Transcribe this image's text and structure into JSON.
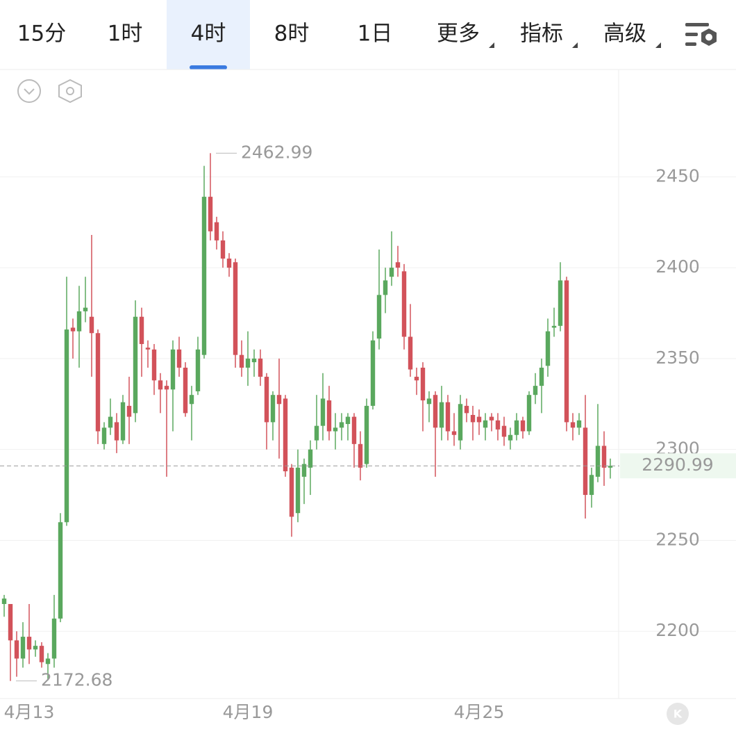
{
  "tabs": [
    "15分",
    "1时",
    "4时",
    "8时",
    "1日",
    "更多",
    "指标",
    "高级"
  ],
  "active_tab": 2,
  "chart_data": {
    "type": "candlestick",
    "open": [
      2215,
      2215,
      2195,
      2185,
      2197,
      2190,
      2192,
      2182,
      2185,
      2207,
      2260,
      2367,
      2365,
      2376,
      2373,
      2364,
      2303,
      2312,
      2315,
      2305,
      2324,
      2320,
      2373,
      2356,
      2355,
      2338,
      2335,
      2333,
      2355,
      2345,
      2325,
      2332,
      2352,
      2439,
      2425,
      2415,
      2405,
      2403,
      2352,
      2345,
      2348,
      2350,
      2340,
      2315,
      2330,
      2328,
      2290,
      2265,
      2285,
      2290,
      2305,
      2313,
      2327,
      2310,
      2312,
      2314,
      2318,
      2303,
      2292,
      2324,
      2361,
      2385,
      2395,
      2403,
      2398,
      2362,
      2340,
      2345,
      2325,
      2330,
      2312,
      2326,
      2310,
      2305,
      2324,
      2319,
      2318,
      2312,
      2318,
      2316,
      2313,
      2305,
      2308,
      2316,
      2310,
      2330,
      2335,
      2346,
      2367,
      2368,
      2393,
      2315,
      2312,
      2312,
      2275,
      2285,
      2302,
      2290
    ],
    "high": [
      2220,
      2215,
      2200,
      2205,
      2215,
      2195,
      2194,
      2188,
      2220,
      2265,
      2395,
      2372,
      2390,
      2395,
      2418,
      2366,
      2315,
      2328,
      2320,
      2330,
      2340,
      2382,
      2378,
      2360,
      2358,
      2342,
      2338,
      2360,
      2362,
      2348,
      2335,
      2362,
      2456,
      2462.99,
      2428,
      2420,
      2408,
      2405,
      2360,
      2365,
      2355,
      2355,
      2342,
      2332,
      2350,
      2330,
      2292,
      2300,
      2295,
      2305,
      2330,
      2342,
      2335,
      2320,
      2320,
      2320,
      2320,
      2310,
      2328,
      2365,
      2410,
      2400,
      2420,
      2412,
      2402,
      2380,
      2345,
      2348,
      2332,
      2332,
      2335,
      2330,
      2320,
      2330,
      2328,
      2324,
      2322,
      2320,
      2320,
      2320,
      2318,
      2312,
      2320,
      2318,
      2332,
      2342,
      2350,
      2372,
      2378,
      2403,
      2395,
      2320,
      2320,
      2330,
      2290,
      2325,
      2310,
      2295
    ],
    "low": [
      2208,
      2172.68,
      2175,
      2180,
      2182,
      2186,
      2180,
      2173,
      2180,
      2205,
      2258,
      2350,
      2345,
      2370,
      2340,
      2303,
      2300,
      2308,
      2298,
      2303,
      2303,
      2315,
      2340,
      2345,
      2330,
      2320,
      2285,
      2310,
      2340,
      2318,
      2305,
      2330,
      2350,
      2415,
      2410,
      2400,
      2395,
      2345,
      2340,
      2335,
      2340,
      2335,
      2300,
      2305,
      2295,
      2285,
      2252,
      2260,
      2270,
      2275,
      2300,
      2305,
      2305,
      2300,
      2305,
      2305,
      2290,
      2283,
      2290,
      2322,
      2355,
      2375,
      2390,
      2395,
      2355,
      2340,
      2330,
      2310,
      2315,
      2285,
      2305,
      2305,
      2302,
      2300,
      2315,
      2305,
      2308,
      2305,
      2310,
      2305,
      2302,
      2300,
      2305,
      2306,
      2308,
      2325,
      2320,
      2340,
      2362,
      2365,
      2310,
      2305,
      2308,
      2262,
      2268,
      2282,
      2280,
      2284
    ],
    "close": [
      2218,
      2195,
      2185,
      2197,
      2190,
      2192,
      2183,
      2185,
      2207,
      2260,
      2366,
      2365,
      2376,
      2378,
      2364,
      2310,
      2312,
      2318,
      2305,
      2326,
      2318,
      2373,
      2358,
      2355,
      2338,
      2333,
      2333,
      2355,
      2345,
      2320,
      2330,
      2355,
      2439,
      2420,
      2415,
      2405,
      2400,
      2352,
      2345,
      2350,
      2350,
      2340,
      2315,
      2330,
      2325,
      2288,
      2263,
      2290,
      2292,
      2300,
      2313,
      2328,
      2310,
      2312,
      2315,
      2318,
      2303,
      2290,
      2324,
      2360,
      2385,
      2393,
      2400,
      2400,
      2362,
      2344,
      2338,
      2327,
      2328,
      2312,
      2326,
      2310,
      2308,
      2325,
      2320,
      2315,
      2315,
      2316,
      2316,
      2311,
      2307,
      2308,
      2316,
      2310,
      2330,
      2335,
      2345,
      2365,
      2368,
      2393,
      2315,
      2312,
      2316,
      2275,
      2286,
      2302,
      2290,
      2290.99
    ],
    "up_color": "#5aa85e",
    "down_color": "#d2525a",
    "ylim": [
      2163,
      2509
    ],
    "yticks": [
      2200,
      2250,
      2300,
      2350,
      2400,
      2450
    ],
    "xticks": [
      {
        "value": 4,
        "label": "4月13"
      },
      {
        "value": 39,
        "label": "4月19"
      },
      {
        "value": 76,
        "label": "4月25"
      }
    ],
    "grid": true
  }
}
